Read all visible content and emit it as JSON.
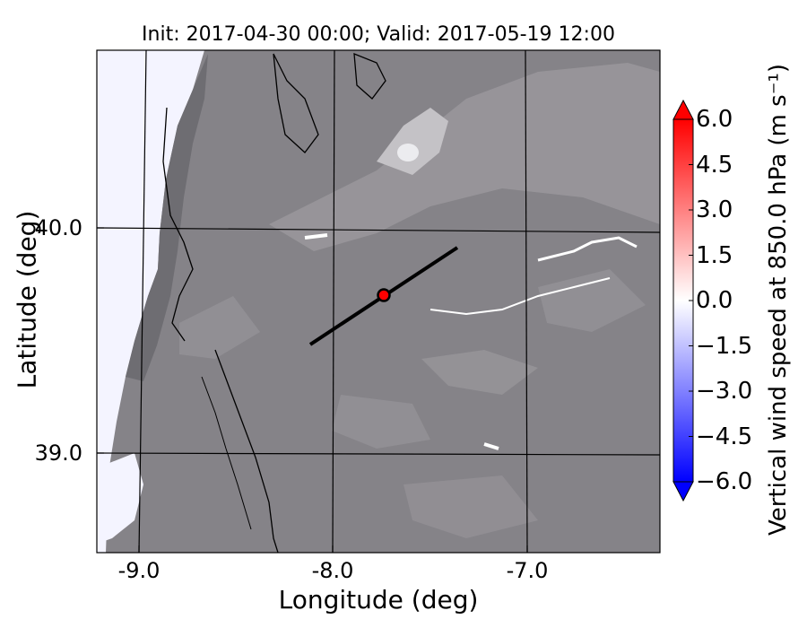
{
  "map": {
    "title": "Init: 2017-04-30 00:00; Valid: 2017-05-19 12:00",
    "xlabel": "Longitude (deg)",
    "ylabel": "Latitude (deg)",
    "xticks": [
      "-9.0",
      "-8.0",
      "-7.0"
    ],
    "yticks": [
      "40.0",
      "39.0"
    ],
    "marker": {
      "lon": -7.75,
      "lat": 39.68,
      "color": "#ff0000"
    },
    "cross_section": {
      "start": [
        -8.12,
        39.48
      ],
      "end": [
        -7.38,
        39.92
      ]
    }
  },
  "colorbar": {
    "label": "Vertical wind speed at 850.0 hPa (m s⁻¹)",
    "ticks": [
      "6.0",
      "4.5",
      "3.0",
      "1.5",
      "0.0",
      "−1.5",
      "−3.0",
      "−4.5",
      "−6.0"
    ],
    "min": -6.0,
    "max": 6.0,
    "colors": {
      "negative": "#0000ff",
      "zero": "#ffffff",
      "positive": "#ff0000"
    }
  }
}
